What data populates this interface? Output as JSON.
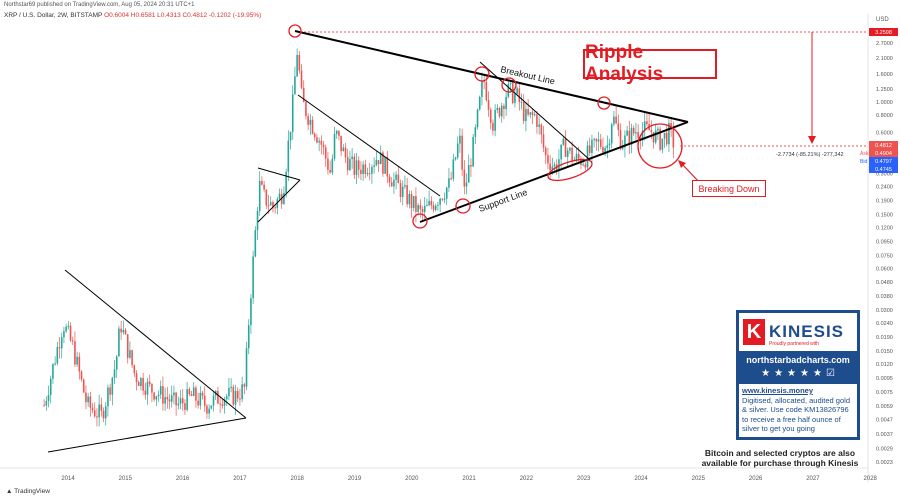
{
  "header": {
    "published": "Northstar69 published on TradingView.com, Aug 05, 2024 20:31 UTC+1",
    "symbol": "XRP / U.S. Dollar, 2W, BITSTAMP",
    "ohlc": "O0.6004 H0.6581 L0.4313 C0.4812 -0.1202 (-19.95%)"
  },
  "annotations": {
    "title": "Ripple Analysis",
    "breakout_line": "Breakout Line",
    "support_line": "Support Line",
    "breaking_down": "Breaking Down",
    "measure": "-2.7734 (-85.21%) -277,342"
  },
  "axis": {
    "unit": "USD",
    "price_labels": [
      "3.2598",
      "0.4812",
      "0.4904",
      "0.4797",
      "0.4745"
    ],
    "price_tags": [
      "Ask",
      "Bid"
    ]
  },
  "sponsor": {
    "brand": "KINESIS",
    "letter": "K",
    "partner": "Proudly partnered with",
    "site": "northstarbadcharts.com",
    "url": "www.kinesis.money",
    "lines": [
      "Digitised, allocated, audited gold",
      "& silver. Use code KM13826796",
      "to receive a free half ounce of",
      "silver to get you going"
    ],
    "note": "Bitcoin and selected cryptos are also available for purchase through Kinesis"
  },
  "footer": {
    "logo": "TradingView"
  },
  "colors": {
    "up": "#26a69a",
    "down": "#ef5350",
    "accent": "#e31c24",
    "line": "#000000"
  },
  "chart_data": {
    "type": "candlestick",
    "x_ticks": [
      "2014",
      "2015",
      "2016",
      "2017",
      "2018",
      "2019",
      "2020",
      "2021",
      "2022",
      "2023",
      "2024",
      "2025",
      "2026",
      "2027",
      "2028"
    ],
    "y_ticks": [
      "2.7000",
      "2.1000",
      "1.6000",
      "1.2500",
      "1.0000",
      "0.8000",
      "0.6000",
      "0.3800",
      "0.3000",
      "0.2400",
      "0.1900",
      "0.1500",
      "0.1200",
      "0.0950",
      "0.0750",
      "0.0600",
      "0.0480",
      "0.0380",
      "0.0300",
      "0.0240",
      "0.0190",
      "0.0150",
      "0.0120",
      "0.0095",
      "0.0075",
      "0.0059",
      "0.0047",
      "0.0037",
      "0.0029",
      "0.0023"
    ],
    "y_scale": "log",
    "key_prices": {
      "ath": 3.2598,
      "last": 0.4812
    },
    "closes": [
      [
        "2013-08",
        0.006
      ],
      [
        "2013-12",
        0.024
      ],
      [
        "2014-02",
        0.016
      ],
      [
        "2014-05",
        0.006
      ],
      [
        "2014-08",
        0.005
      ],
      [
        "2014-11",
        0.012
      ],
      [
        "2014-12",
        0.024
      ],
      [
        "2015-03",
        0.01
      ],
      [
        "2015-06",
        0.008
      ],
      [
        "2015-09",
        0.007
      ],
      [
        "2015-12",
        0.006
      ],
      [
        "2016-03",
        0.007
      ],
      [
        "2016-06",
        0.006
      ],
      [
        "2016-09",
        0.007
      ],
      [
        "2016-12",
        0.007
      ],
      [
        "2017-02",
        0.008
      ],
      [
        "2017-03",
        0.03
      ],
      [
        "2017-05",
        0.25
      ],
      [
        "2017-06",
        0.2
      ],
      [
        "2017-08",
        0.17
      ],
      [
        "2017-10",
        0.22
      ],
      [
        "2017-12",
        0.9
      ],
      [
        "2018-01",
        2.4
      ],
      [
        "2018-02",
        1.0
      ],
      [
        "2018-04",
        0.7
      ],
      [
        "2018-06",
        0.5
      ],
      [
        "2018-08",
        0.3
      ],
      [
        "2018-09",
        0.6
      ],
      [
        "2018-11",
        0.4
      ],
      [
        "2019-01",
        0.32
      ],
      [
        "2019-04",
        0.35
      ],
      [
        "2019-06",
        0.4
      ],
      [
        "2019-09",
        0.27
      ],
      [
        "2019-12",
        0.2
      ],
      [
        "2020-03",
        0.15
      ],
      [
        "2020-06",
        0.19
      ],
      [
        "2020-09",
        0.25
      ],
      [
        "2020-11",
        0.55
      ],
      [
        "2020-12",
        0.22
      ],
      [
        "2021-02",
        0.5
      ],
      [
        "2021-04",
        1.5
      ],
      [
        "2021-06",
        0.7
      ],
      [
        "2021-09",
        1.2
      ],
      [
        "2021-11",
        1.1
      ],
      [
        "2022-01",
        0.75
      ],
      [
        "2022-03",
        0.8
      ],
      [
        "2022-05",
        0.4
      ],
      [
        "2022-07",
        0.33
      ],
      [
        "2022-09",
        0.48
      ],
      [
        "2022-11",
        0.38
      ],
      [
        "2023-01",
        0.38
      ],
      [
        "2023-04",
        0.5
      ],
      [
        "2023-06",
        0.48
      ],
      [
        "2023-07",
        0.8
      ],
      [
        "2023-09",
        0.5
      ],
      [
        "2023-12",
        0.62
      ],
      [
        "2024-03",
        0.62
      ],
      [
        "2024-05",
        0.52
      ],
      [
        "2024-07",
        0.6
      ],
      [
        "2024-08",
        0.48
      ]
    ]
  }
}
